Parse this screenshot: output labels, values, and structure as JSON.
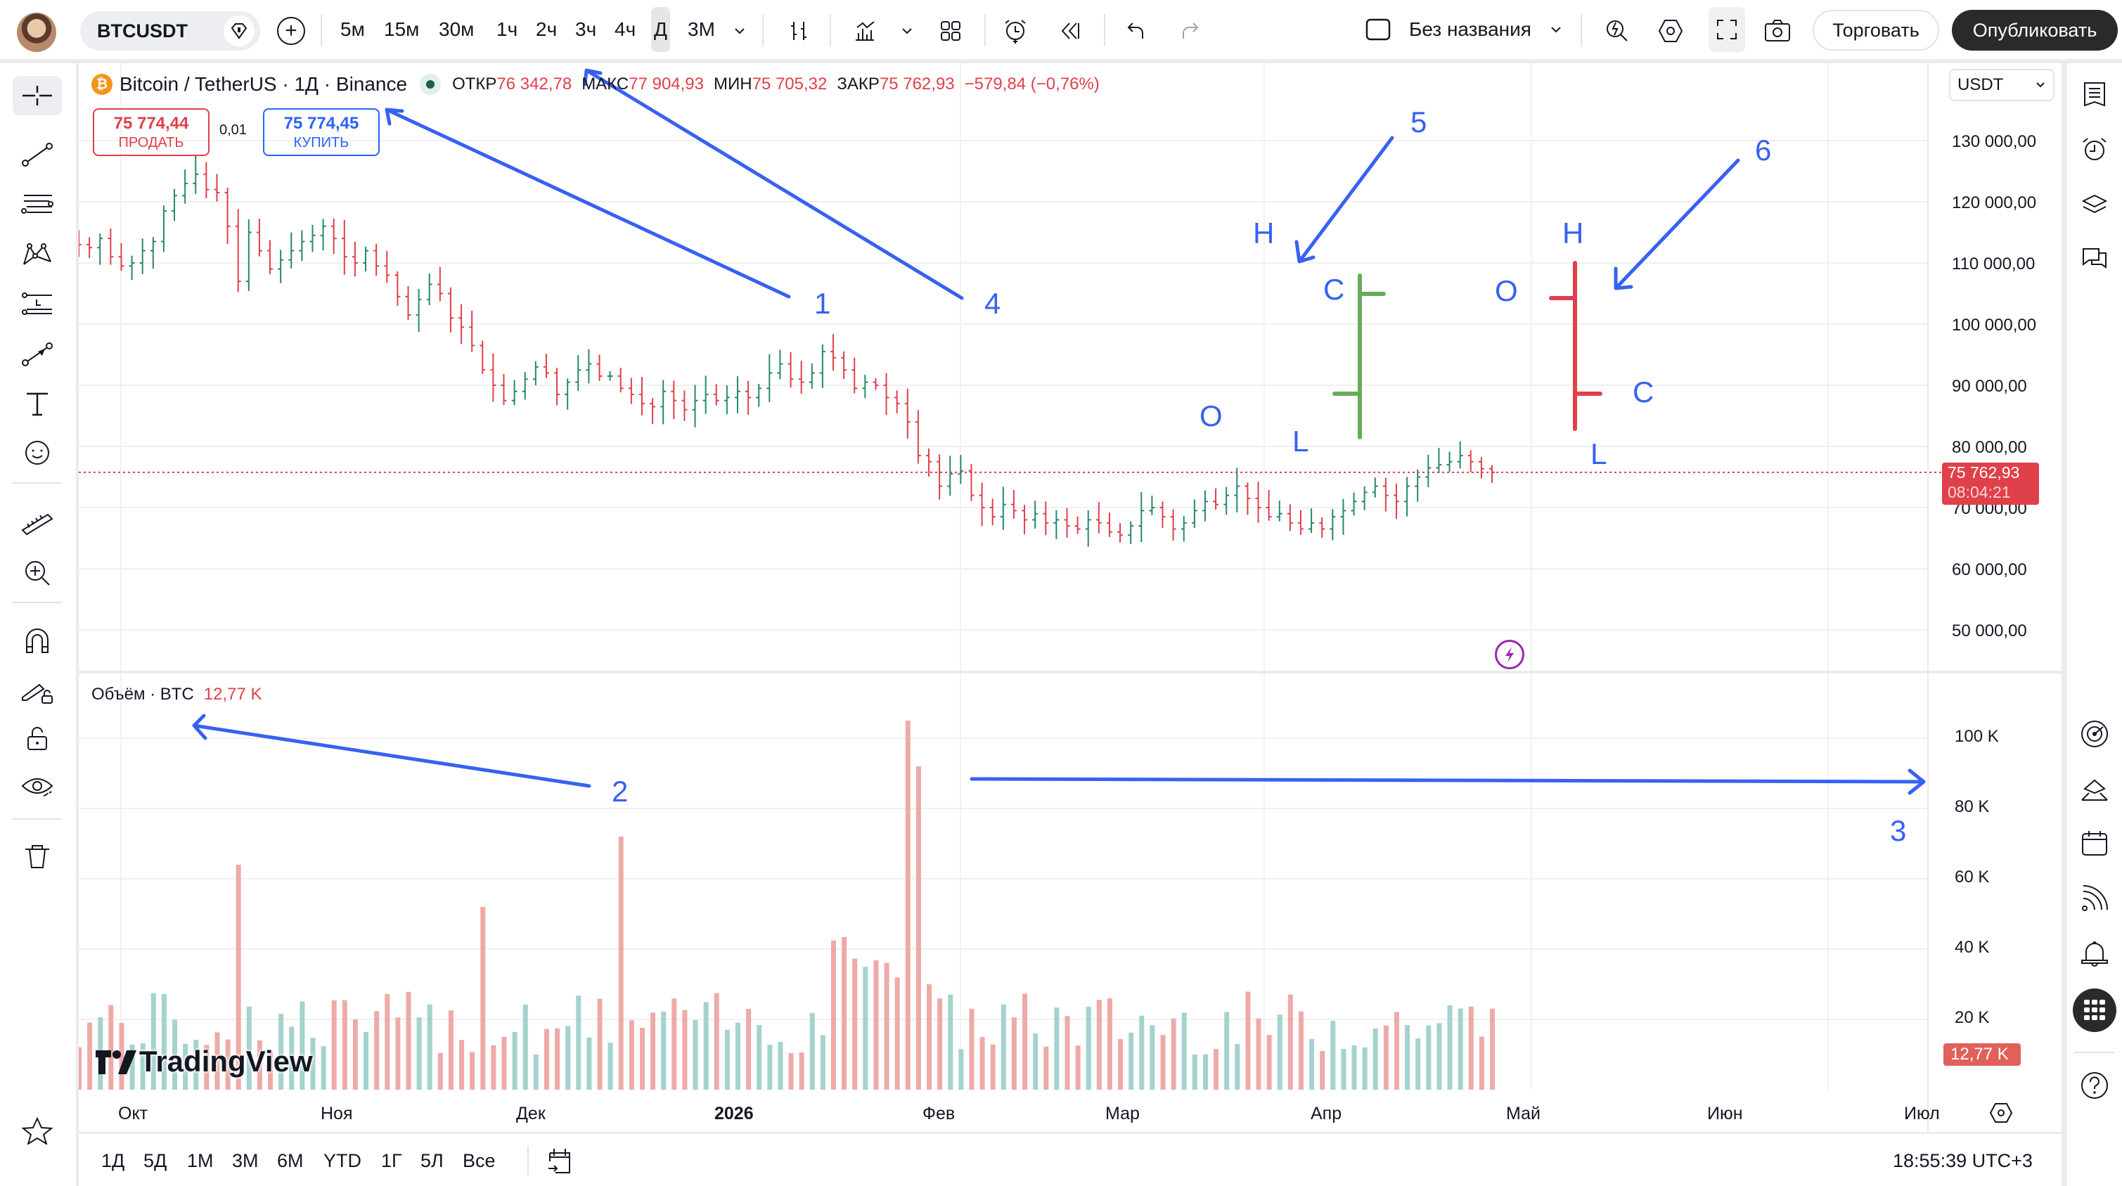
{
  "topbar": {
    "symbol": "BTCUSDT",
    "timeframes": [
      "5м",
      "15м",
      "30м",
      "1ч",
      "2ч",
      "3ч",
      "4ч",
      "Д",
      "3М"
    ],
    "active_timeframe": "Д",
    "layout_name": "Без названия",
    "trade_label": "Торговать",
    "publish_label": "Опубликовать"
  },
  "legend": {
    "title": "Bitcoin / TetherUS · 1Д · Binance",
    "open_label": "ОТКР",
    "open": "76 342,78",
    "high_label": "МАКС",
    "high": "77 904,93",
    "low_label": "МИН",
    "low": "75 705,32",
    "close_label": "ЗАКР",
    "close": "75 762,93",
    "change": "−579,84 (−0,76%)",
    "sell_price": "75 774,44",
    "sell_label": "ПРОДАТЬ",
    "spread": "0,01",
    "buy_price": "75 774,45",
    "buy_label": "КУПИТЬ"
  },
  "price_axis": {
    "currency": "USDT",
    "ticks": [
      "130 000,00",
      "120 000,00",
      "110 000,00",
      "100 000,00",
      "90 000,00",
      "80 000,00",
      "70 000,00",
      "60 000,00",
      "50 000,00"
    ],
    "last_price": "75 762,93",
    "countdown": "08:04:21"
  },
  "volume": {
    "legend_label": "Объём · BTC",
    "legend_value": "12,77 K",
    "ticks": [
      "100 K",
      "80 K",
      "60 K",
      "40 K",
      "20 K"
    ],
    "last_value": "12,77 K"
  },
  "time_axis": {
    "labels": [
      "Окт",
      "Ноя",
      "Дек",
      "2026",
      "Фев",
      "Мар",
      "Апр",
      "Май",
      "Июн",
      "Июл"
    ]
  },
  "bottom": {
    "ranges": [
      "1Д",
      "5Д",
      "1М",
      "3М",
      "6М",
      "YTD",
      "1Г",
      "5Л",
      "Все"
    ],
    "clock": "18:55:39 UTC+3"
  },
  "watermark": "TradingView",
  "annotations": {
    "numbers": [
      "1",
      "2",
      "3",
      "4",
      "5",
      "6"
    ],
    "ohlc_letters": {
      "h": "H",
      "o": "O",
      "c": "C",
      "l": "L"
    }
  },
  "colors": {
    "up": "#26896b",
    "down": "#e0404a",
    "vol_up": "#a3d3cc",
    "vol_down": "#eeaaa7",
    "annotation": "#3761f2",
    "bull_example": "#67ab5a"
  },
  "chart_data": {
    "type": "ohlc-bar",
    "title": "Bitcoin / TetherUS · 1Д · Binance",
    "interval": "1D",
    "x_labels": [
      "Окт",
      "Ноя",
      "Дек",
      "2026",
      "Фев",
      "Мар",
      "Апр",
      "Май",
      "Июн",
      "Июл"
    ],
    "ylim": [
      45000,
      135000
    ],
    "y_ticks": [
      50000,
      60000,
      70000,
      80000,
      90000,
      100000,
      110000,
      120000,
      130000
    ],
    "close_series_approx": [
      113000,
      112500,
      114000,
      111000,
      109500,
      110000,
      112000,
      113500,
      118500,
      121000,
      123000,
      124500,
      122000,
      121500,
      116000,
      107000,
      115000,
      112000,
      109000,
      110500,
      112000,
      113500,
      114500,
      116000,
      114000,
      111000,
      110000,
      112000,
      109500,
      108000,
      104500,
      101500,
      104000,
      106500,
      105000,
      101000,
      99500,
      96500,
      92500,
      90000,
      87500,
      89000,
      91000,
      93000,
      92000,
      88500,
      90500,
      92500,
      93500,
      91500,
      91500,
      89500,
      88500,
      87000,
      86500,
      89000,
      87500,
      86000,
      87500,
      88500,
      87500,
      88000,
      89000,
      88000,
      89500,
      92000,
      93500,
      91000,
      90500,
      92000,
      95500,
      94500,
      92500,
      89500,
      90500,
      90000,
      88000,
      87000,
      84000,
      78500,
      77500,
      73500,
      75500,
      76000,
      72000,
      70000,
      68500,
      70500,
      69500,
      68000,
      69000,
      67500,
      68000,
      67000,
      66500,
      68000,
      67500,
      66000,
      65500,
      67000,
      69500,
      70000,
      68500,
      66500,
      67500,
      69500,
      71000,
      70500,
      72000,
      73500,
      71500,
      70000,
      68500,
      69000,
      67500,
      66500,
      67500,
      66500,
      68500,
      69500,
      71000,
      72500,
      73500,
      72000,
      71000,
      73500,
      75000,
      76500,
      77000,
      77500,
      78500,
      77500,
      76342,
      75763
    ],
    "volume_ylim": [
      0,
      110000
    ],
    "volume_ticks": [
      20000,
      40000,
      60000,
      80000,
      100000
    ],
    "last_volume": 12770,
    "annotations": [
      {
        "label": "1",
        "points_to": "symbol legend"
      },
      {
        "label": "2",
        "points_to": "volume legend"
      },
      {
        "label": "3",
        "points_to": "volume spike level (~85K)"
      },
      {
        "label": "4",
        "points_to": "OHLC values"
      },
      {
        "label": "5",
        "points_to": "bullish OHLC bar example (O low, C high)"
      },
      {
        "label": "6",
        "points_to": "bearish OHLC bar example (O high, C low)"
      }
    ]
  }
}
